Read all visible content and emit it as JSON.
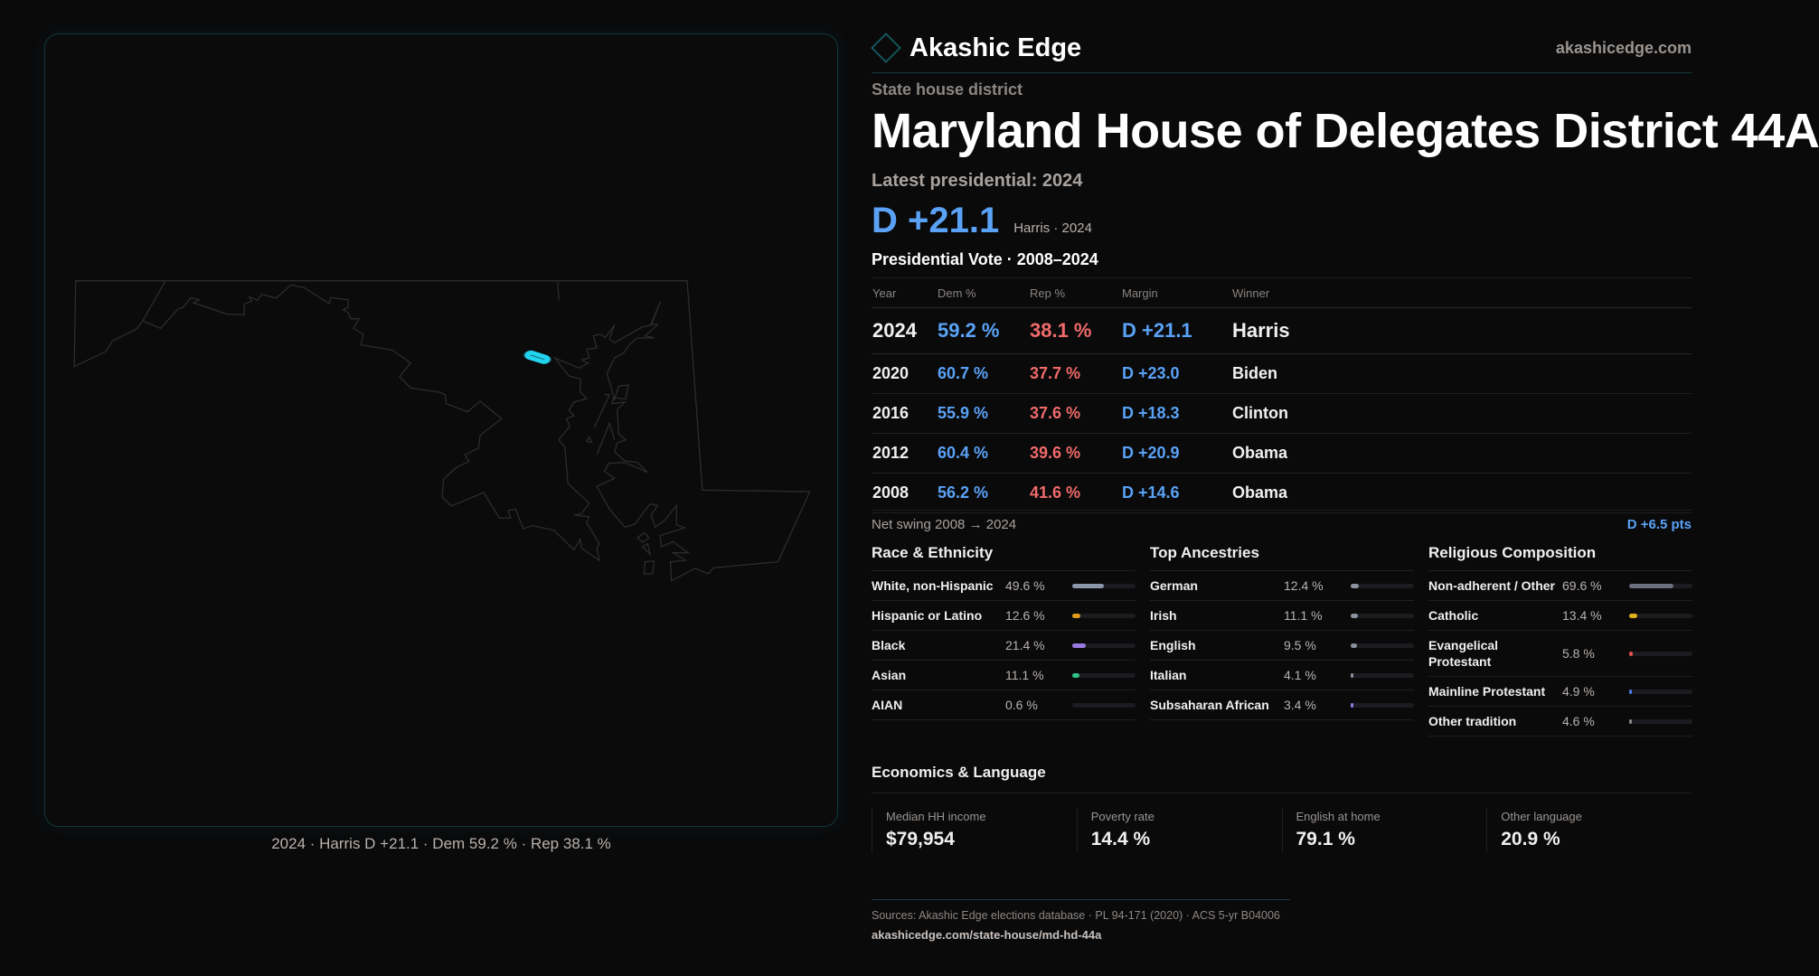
{
  "map": {
    "caption": "2024 · Harris D +21.1 · Dem 59.2 % · Rep 38.1 %",
    "highlight_color": "#22d3ee"
  },
  "header": {
    "brand": "Akashic Edge",
    "site": "akashicedge.com",
    "logo_icon": "diamond-icon"
  },
  "district": {
    "type": "State house district",
    "title": "Maryland House of Delegates District 44A",
    "latest_label": "Latest presidential: 2024",
    "latest_margin": "D +21.1",
    "latest_detail": "Harris · 2024"
  },
  "vote": {
    "title": "Presidential Vote · 2008–2024",
    "columns": [
      "Year",
      "Dem %",
      "Rep %",
      "Margin",
      "Winner"
    ],
    "rows": [
      {
        "year": "2024",
        "dem": "59.2 %",
        "rep": "38.1 %",
        "margin": "D +21.1",
        "winner": "Harris"
      },
      {
        "year": "2020",
        "dem": "60.7 %",
        "rep": "37.7 %",
        "margin": "D +23.0",
        "winner": "Biden"
      },
      {
        "year": "2016",
        "dem": "55.9 %",
        "rep": "37.6 %",
        "margin": "D +18.3",
        "winner": "Clinton"
      },
      {
        "year": "2012",
        "dem": "60.4 %",
        "rep": "39.6 %",
        "margin": "D +20.9",
        "winner": "Obama"
      },
      {
        "year": "2008",
        "dem": "56.2 %",
        "rep": "41.6 %",
        "margin": "D +14.6",
        "winner": "Obama"
      }
    ],
    "swing_label": "Net swing 2008 → 2024",
    "swing_value": "D +6.5 pts"
  },
  "sections": [
    {
      "title": "Race & Ethnicity",
      "rows": [
        {
          "name": "White, non-Hispanic",
          "pct": "49.6 %",
          "value": 49.6,
          "color": "#8a96aa"
        },
        {
          "name": "Hispanic or Latino",
          "pct": "12.6 %",
          "value": 12.6,
          "color": "#e09a1a"
        },
        {
          "name": "Black",
          "pct": "21.4 %",
          "value": 21.4,
          "color": "#9a7ae0"
        },
        {
          "name": "Asian",
          "pct": "11.1 %",
          "value": 11.1,
          "color": "#2fc48a"
        },
        {
          "name": "AIAN",
          "pct": "0.6 %",
          "value": 0.6,
          "color": "#6a6a70"
        }
      ]
    },
    {
      "title": "Top Ancestries",
      "rows": [
        {
          "name": "German",
          "pct": "12.4 %",
          "value": 12.4,
          "color": "#8a92a0"
        },
        {
          "name": "Irish",
          "pct": "11.1 %",
          "value": 11.1,
          "color": "#8a92a0"
        },
        {
          "name": "English",
          "pct": "9.5 %",
          "value": 9.5,
          "color": "#8a92a0"
        },
        {
          "name": "Italian",
          "pct": "4.1 %",
          "value": 4.1,
          "color": "#8a92a0"
        },
        {
          "name": "Subsaharan African",
          "pct": "3.4 %",
          "value": 3.4,
          "color": "#9a7ae0"
        }
      ]
    },
    {
      "title": "Religious Composition",
      "rows": [
        {
          "name": "Non-adherent / Other",
          "pct": "69.6 %",
          "value": 69.6,
          "color": "#6a7080"
        },
        {
          "name": "Catholic",
          "pct": "13.4 %",
          "value": 13.4,
          "color": "#e0b020"
        },
        {
          "name": "Evangelical Protestant",
          "pct": "5.8 %",
          "value": 5.8,
          "color": "#e05050"
        },
        {
          "name": "Mainline Protestant",
          "pct": "4.9 %",
          "value": 4.9,
          "color": "#4a7ae0"
        },
        {
          "name": "Other tradition",
          "pct": "4.6 %",
          "value": 4.6,
          "color": "#888890"
        }
      ]
    }
  ],
  "economics": {
    "title": "Economics & Language",
    "cards": [
      {
        "label": "Median HH income",
        "value": "$79,954"
      },
      {
        "label": "Poverty rate",
        "value": "14.4 %"
      },
      {
        "label": "English at home",
        "value": "79.1 %"
      },
      {
        "label": "Other language",
        "value": "20.9 %"
      }
    ]
  },
  "footer": {
    "sources": "Sources: Akashic Edge elections database · PL 94-171 (2020) · ACS 5-yr B04006",
    "url": "akashicedge.com/state-house/md-hd-44a"
  }
}
